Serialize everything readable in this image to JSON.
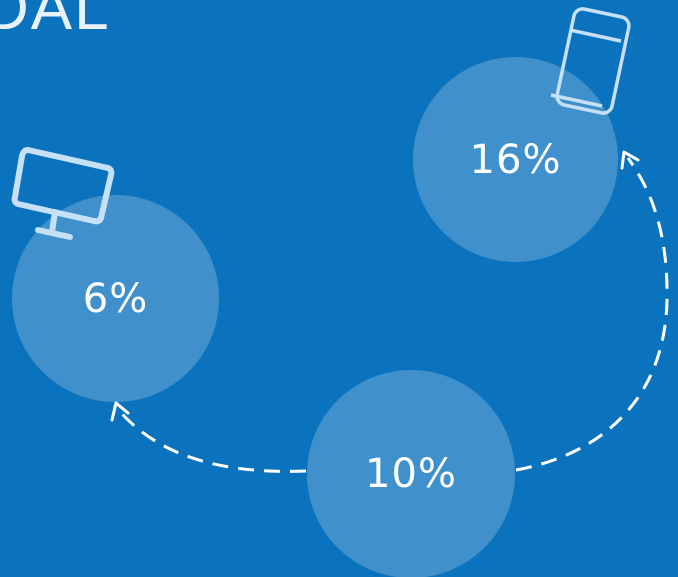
{
  "title": "DAL",
  "colors": {
    "background": "#0b73bd",
    "circle_fill": "rgba(255,255,255,0.22)",
    "icon_stroke": "#c6e0f5",
    "arrow": "#ffffff"
  },
  "circles": {
    "desktop": {
      "value": "6%",
      "icon": "monitor-icon"
    },
    "mobile": {
      "value": "16%",
      "icon": "smartphone-icon"
    },
    "bottom": {
      "value": "10%"
    }
  }
}
